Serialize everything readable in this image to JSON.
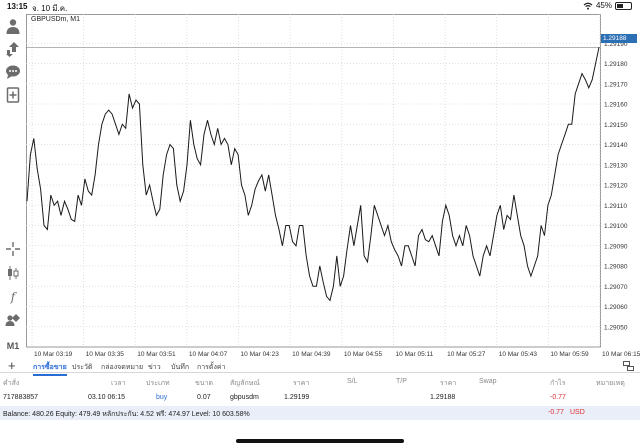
{
  "status_bar": {
    "time": "13:15",
    "date": "จ. 10 มี.ค.",
    "battery_percent": "45%",
    "battery_level": 0.45
  },
  "toolbar": {
    "items": [
      "person-icon",
      "trade-arrows-icon",
      "chat-icon",
      "add-document-icon",
      "crosshair-icon",
      "candlestick-icon",
      "indicator-function-icon",
      "objects-icon"
    ],
    "timeframe": "M1"
  },
  "chart": {
    "symbol_label": "GBPUSDm, M1",
    "current_price_label": "1.29188",
    "colors": {
      "line": "#1a1a1a",
      "grid": "#d6d6d6",
      "price_tag": "#2c6fb5"
    }
  },
  "chart_data": {
    "type": "line",
    "title": "GBPUSDm, M1",
    "ylim": [
      1.2904,
      1.292
    ],
    "y_ticks": [
      "1.29190",
      "1.29180",
      "1.29170",
      "1.29160",
      "1.29150",
      "1.29140",
      "1.29130",
      "1.29120",
      "1.29110",
      "1.29100",
      "1.29090",
      "1.29080",
      "1.29070",
      "1.29060",
      "1.29050"
    ],
    "x_ticks": [
      "10 Mar 03:19",
      "10 Mar 03:35",
      "10 Mar 03:51",
      "10 Mar 04:07",
      "10 Mar 04:23",
      "10 Mar 04:39",
      "10 Mar 04:55",
      "10 Mar 05:11",
      "10 Mar 05:27",
      "10 Mar 05:43",
      "10 Mar 05:59",
      "10 Mar 06:15"
    ],
    "grid": true,
    "series": [
      {
        "values": [
          1.29112,
          1.29135,
          1.29143,
          1.29128,
          1.29118,
          1.291,
          1.29098,
          1.29115,
          1.2911,
          1.29112,
          1.29105,
          1.29112,
          1.29108,
          1.29103,
          1.29102,
          1.29115,
          1.2911,
          1.29123,
          1.29117,
          1.29115,
          1.29125,
          1.2914,
          1.2915,
          1.29155,
          1.29157,
          1.29155,
          1.2915,
          1.29145,
          1.2915,
          1.29148,
          1.29165,
          1.29158,
          1.29162,
          1.2916,
          1.2913,
          1.29115,
          1.2912,
          1.29112,
          1.29105,
          1.29108,
          1.29125,
          1.29135,
          1.2914,
          1.29138,
          1.2912,
          1.29112,
          1.29117,
          1.2913,
          1.29152,
          1.2914,
          1.29133,
          1.2913,
          1.29145,
          1.29152,
          1.29145,
          1.2914,
          1.29148,
          1.2914,
          1.29143,
          1.2914,
          1.2913,
          1.29138,
          1.29135,
          1.2912,
          1.29115,
          1.29105,
          1.2911,
          1.29118,
          1.29122,
          1.29125,
          1.29117,
          1.29125,
          1.29115,
          1.29105,
          1.29098,
          1.2909,
          1.291,
          1.291,
          1.29092,
          1.2909,
          1.291,
          1.291,
          1.29085,
          1.29075,
          1.2907,
          1.2907,
          1.2908,
          1.29072,
          1.29065,
          1.29063,
          1.2907,
          1.29085,
          1.2907,
          1.29075,
          1.29088,
          1.291,
          1.2909,
          1.291,
          1.2911,
          1.29085,
          1.29082,
          1.29095,
          1.2911,
          1.29105,
          1.291,
          1.29095,
          1.291,
          1.29092,
          1.29088,
          1.29085,
          1.2908,
          1.2909,
          1.2909,
          1.29085,
          1.2908,
          1.29095,
          1.29098,
          1.29093,
          1.29092,
          1.29095,
          1.2909,
          1.29085,
          1.29102,
          1.2911,
          1.29105,
          1.29095,
          1.2909,
          1.29095,
          1.2909,
          1.291,
          1.29095,
          1.29085,
          1.2908,
          1.29075,
          1.29085,
          1.2909,
          1.29085,
          1.29095,
          1.29105,
          1.2911,
          1.29098,
          1.29105,
          1.29103,
          1.29115,
          1.29105,
          1.29095,
          1.2909,
          1.2908,
          1.29075,
          1.2908,
          1.29085,
          1.291,
          1.29095,
          1.2911,
          1.29115,
          1.29125,
          1.29135,
          1.2914,
          1.29145,
          1.2915,
          1.2915,
          1.29165,
          1.2917,
          1.29175,
          1.29172,
          1.29168,
          1.29172,
          1.2918,
          1.29188
        ]
      }
    ]
  },
  "tabs": {
    "items": [
      "การซื้อขาย",
      "ประวัติ",
      "กล่องจดหมาย",
      "ข่าว",
      "บันทึก",
      "การตั้งค่า"
    ],
    "active_index": 0
  },
  "table": {
    "headers": {
      "order": "คำสั่ง",
      "time": "เวลา",
      "type": "ประเภท",
      "volume": "ขนาด",
      "symbol": "สัญลักษณ์",
      "price": "ราคา",
      "sl": "S/L",
      "tp": "T/P",
      "current_price": "ราคา",
      "swap": "Swap",
      "profit": "กำไร",
      "comment": "หมายเหตุ"
    },
    "row": {
      "order": "717883857",
      "time": "03.10 06:15",
      "type": "buy",
      "volume": "0.07",
      "symbol": "gbpusdm",
      "price": "1.29199",
      "current_price": "1.29188",
      "profit": "-0.77"
    }
  },
  "balance": {
    "text": "Balance: 480.26 Equity: 479.49 หลักประกัน: 4.52 ฟรี: 474.97 Level: 10 603.58%",
    "profit": "-0.77",
    "currency": "USD"
  }
}
